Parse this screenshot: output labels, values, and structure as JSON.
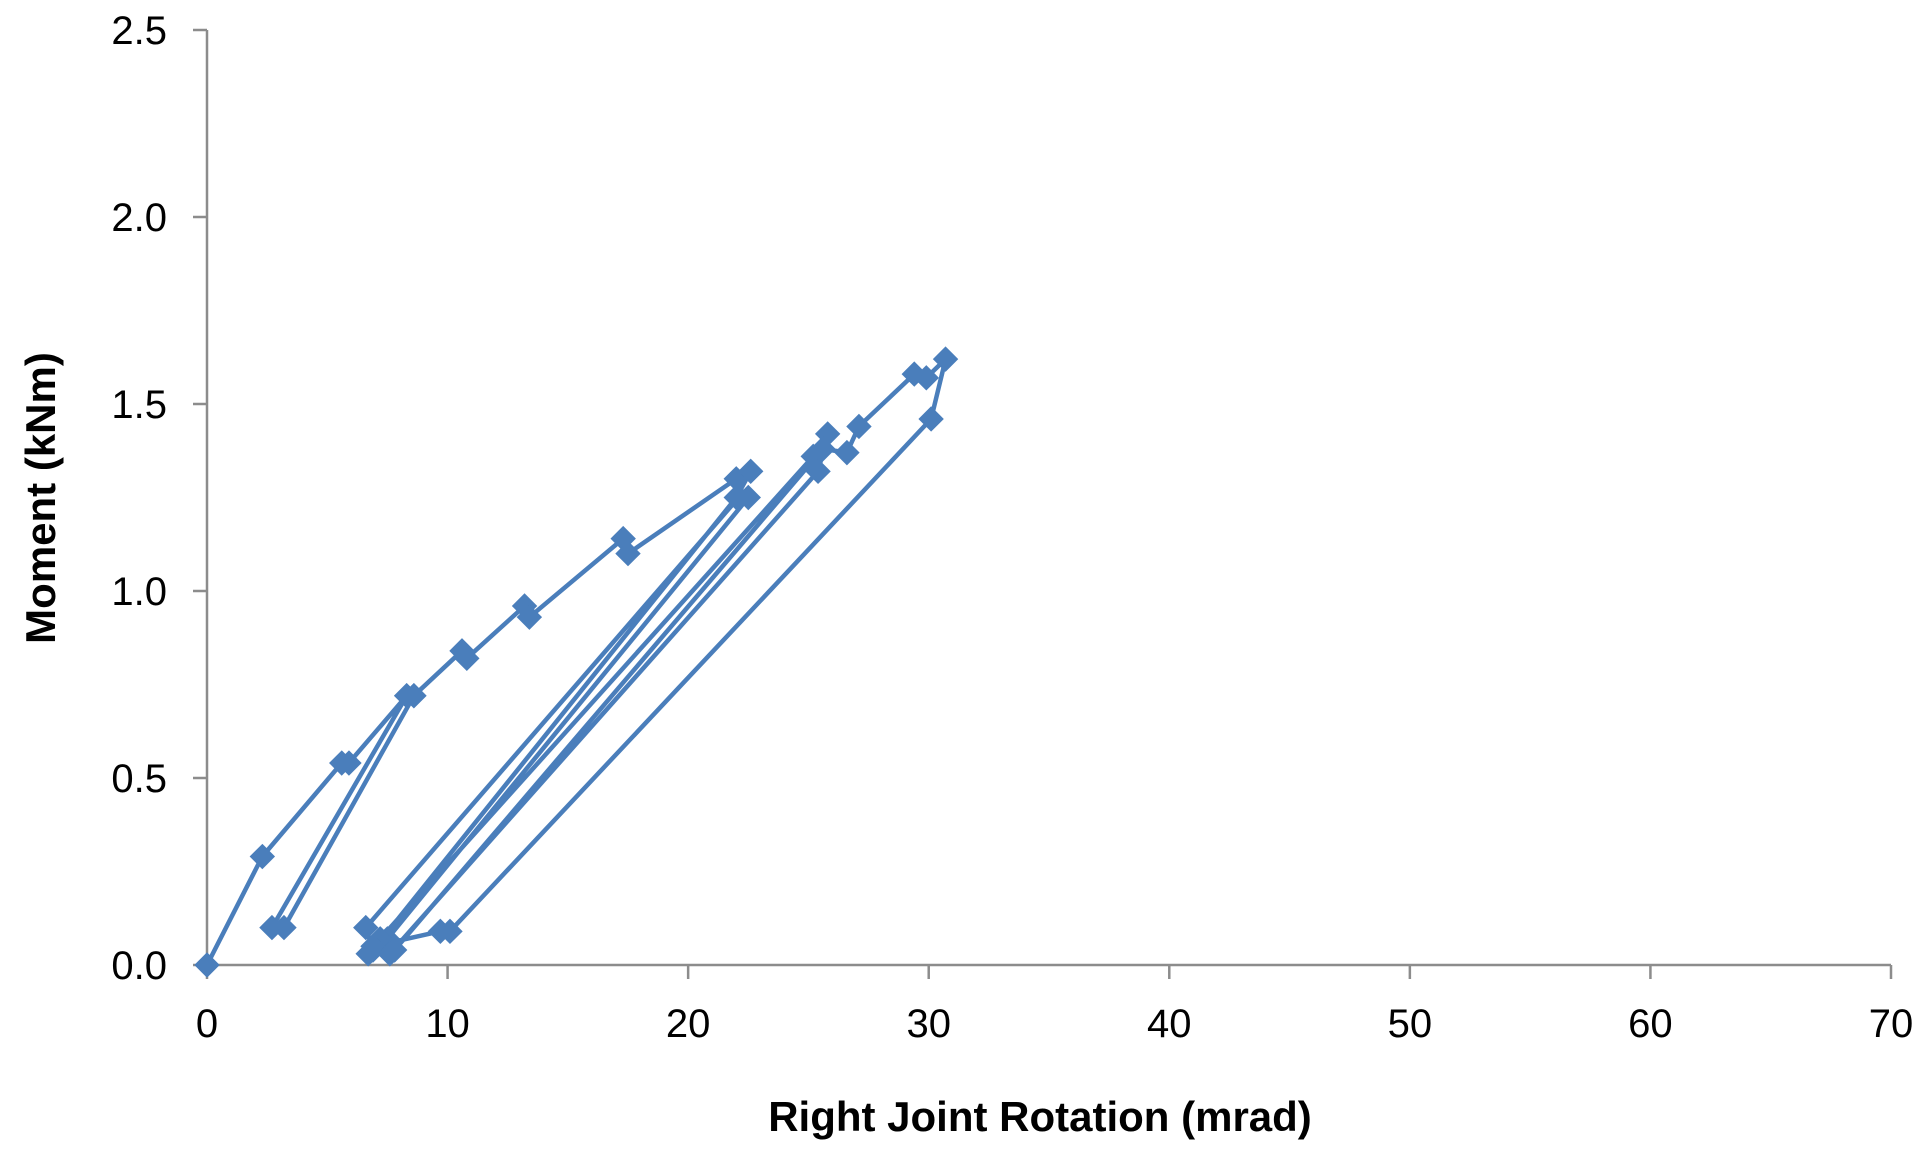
{
  "chart_data": {
    "type": "scatter",
    "title": "",
    "xlabel": "Right Joint Rotation  (mrad)",
    "ylabel": "Moment  (kNm)",
    "xlim": [
      0,
      70
    ],
    "ylim": [
      0,
      2.5
    ],
    "x_ticks": [
      0,
      10,
      20,
      30,
      40,
      50,
      60,
      70
    ],
    "y_ticks": [
      0.0,
      0.5,
      1.0,
      1.5,
      2.0,
      2.5
    ],
    "x_tick_labels": [
      "0",
      "10",
      "20",
      "30",
      "40",
      "50",
      "60",
      "70"
    ],
    "y_tick_labels": [
      "0.0",
      "0.5",
      "1.0",
      "1.5",
      "2.0",
      "2.5"
    ],
    "grid": false,
    "legend": "none",
    "marker": "diamond",
    "colors": {
      "series": "#4a7ebb",
      "axis": "#8c8c8c"
    },
    "series": [
      {
        "x": [
          0,
          2.3,
          5.6,
          5.9,
          8.3,
          8.6,
          3.2,
          2.7,
          8.3,
          8.6,
          10.6,
          10.8,
          13.2,
          13.4,
          17.3,
          17.5,
          22.0,
          22.6,
          22.0,
          6.9,
          6.6,
          22.1,
          22.5,
          7.5,
          7.2,
          25.2,
          25.8,
          25.4,
          7.6,
          7.8,
          25.6,
          26.6,
          27.1,
          29.4,
          29.9,
          30.7,
          30.1,
          10.1,
          9.7,
          6.9,
          6.7
        ],
        "y": [
          0.0,
          0.29,
          0.54,
          0.54,
          0.72,
          0.72,
          0.1,
          0.1,
          0.72,
          0.72,
          0.84,
          0.82,
          0.96,
          0.93,
          1.14,
          1.1,
          1.3,
          1.32,
          1.25,
          0.04,
          0.1,
          1.25,
          1.25,
          0.07,
          0.07,
          1.36,
          1.42,
          1.32,
          0.03,
          0.04,
          1.38,
          1.37,
          1.44,
          1.58,
          1.57,
          1.62,
          1.46,
          0.09,
          0.09,
          0.05,
          0.03
        ]
      }
    ]
  }
}
